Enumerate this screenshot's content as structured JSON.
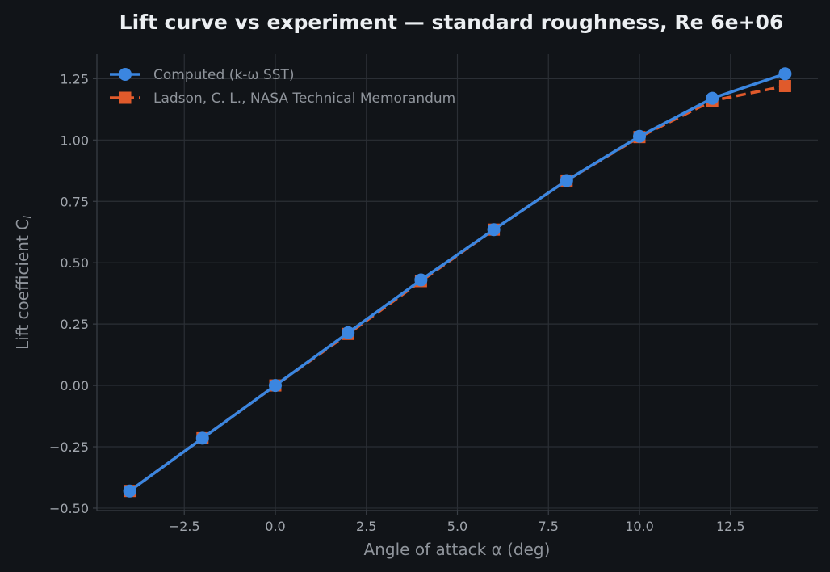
{
  "chart_data": {
    "type": "line",
    "title": "Lift curve vs experiment — standard roughness, Re 6e+06",
    "xlabel": "Angle of attack α (deg)",
    "ylabel": "Lift coefficient C",
    "ylabel_sub": "l",
    "xlim": [
      -4.9,
      14.9
    ],
    "ylim": [
      -0.51,
      1.35
    ],
    "x_ticks": [
      -2.5,
      0.0,
      2.5,
      5.0,
      7.5,
      10.0,
      12.5
    ],
    "x_tick_labels": [
      "−2.5",
      "0.0",
      "2.5",
      "5.0",
      "7.5",
      "10.0",
      "12.5"
    ],
    "y_ticks": [
      -0.5,
      -0.25,
      0.0,
      0.25,
      0.5,
      0.75,
      1.0,
      1.25
    ],
    "y_tick_labels": [
      "−0.50",
      "−0.25",
      "0.00",
      "0.25",
      "0.50",
      "0.75",
      "1.00",
      "1.25"
    ],
    "grid": true,
    "legend_position": "top-left",
    "x": [
      -4,
      -2,
      0,
      2,
      4,
      6,
      8,
      10,
      12,
      14
    ],
    "series": [
      {
        "name": "Computed (k-ω SST)",
        "values": [
          -0.43,
          -0.215,
          0.0,
          0.215,
          0.43,
          0.635,
          0.835,
          1.015,
          1.17,
          1.27
        ],
        "color": "#3b86e0",
        "line_style": "solid",
        "marker": "circle"
      },
      {
        "name": "Ladson, C. L., NASA Technical Memorandum",
        "values": [
          -0.43,
          -0.215,
          0.0,
          0.21,
          0.425,
          0.635,
          0.835,
          1.012,
          1.16,
          1.22
        ],
        "color": "#e05a2b",
        "line_style": "dashed",
        "marker": "square"
      }
    ]
  }
}
